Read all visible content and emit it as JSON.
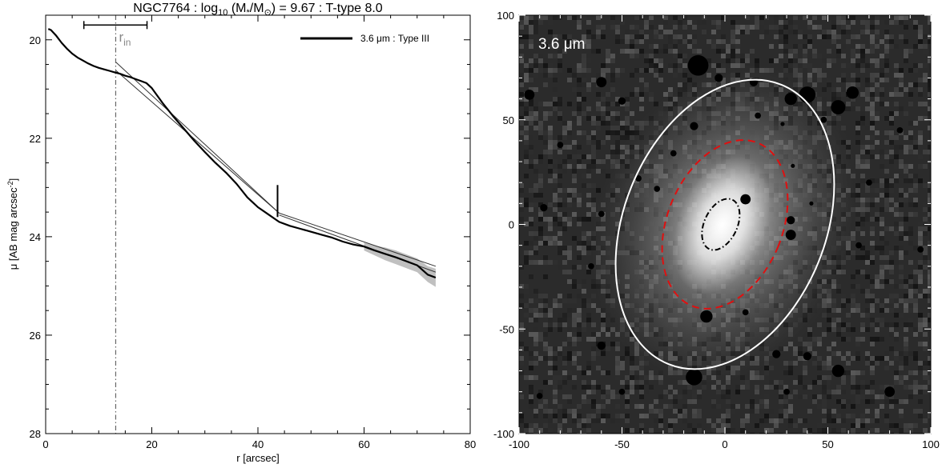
{
  "chart_data": [
    {
      "type": "line",
      "title_parts": {
        "prefix": "NGC7764 : log",
        "sub10": "10",
        "mid": " (M",
        "star": "*",
        "slash": "/M",
        "sun": "⊙",
        "suffix": ") = 9.67 : T-type 8.0"
      },
      "xlabel": "r [arcsec]",
      "ylabel_main": "μ [AB mag arcsec",
      "ylabel_sup": "-2",
      "ylabel_end": "]",
      "xlim": [
        0,
        80
      ],
      "ylim": [
        28,
        19.5
      ],
      "y_inverted": true,
      "xticks": [
        0,
        20,
        40,
        60,
        80
      ],
      "yticks": [
        20,
        22,
        24,
        26,
        28
      ],
      "grid": false,
      "legend": {
        "position": "top-right",
        "entries": [
          {
            "label": "3.6 μm : Type III",
            "style": "solid-thick"
          }
        ]
      },
      "series": [
        {
          "name": "3.6 μm : Type III",
          "x": [
            0.5,
            1,
            2,
            3,
            4,
            5,
            6,
            7,
            8,
            9,
            10,
            11,
            12,
            13,
            14,
            15,
            16,
            17,
            18,
            19,
            20,
            22,
            24,
            26,
            28,
            30,
            32,
            34,
            36,
            38,
            40,
            42,
            44,
            46,
            48,
            50,
            52,
            54,
            56,
            58,
            60,
            62,
            64,
            66,
            68,
            70,
            72,
            73.5
          ],
          "y": [
            19.78,
            19.8,
            19.92,
            20.06,
            20.18,
            20.28,
            20.36,
            20.42,
            20.48,
            20.53,
            20.57,
            20.6,
            20.63,
            20.66,
            20.69,
            20.73,
            20.76,
            20.8,
            20.84,
            20.88,
            20.98,
            21.28,
            21.55,
            21.8,
            22.05,
            22.28,
            22.5,
            22.7,
            22.93,
            23.2,
            23.4,
            23.55,
            23.7,
            23.78,
            23.84,
            23.9,
            23.96,
            24.02,
            24.1,
            24.16,
            24.2,
            24.28,
            24.35,
            24.42,
            24.5,
            24.58,
            24.77,
            24.83
          ]
        }
      ],
      "fits": [
        {
          "x": [
            13.2,
            44
          ],
          "y": [
            20.45,
            23.52
          ]
        },
        {
          "x": [
            13.2,
            44
          ],
          "y": [
            20.62,
            23.52
          ]
        },
        {
          "x": [
            44,
            73.5
          ],
          "y": [
            23.52,
            24.6
          ]
        },
        {
          "x": [
            44,
            73.5
          ],
          "y": [
            23.56,
            24.72
          ]
        }
      ],
      "uncertainty_band": {
        "x": [
          60,
          62,
          64,
          66,
          68,
          70,
          72,
          73.5
        ],
        "ylow": [
          24.12,
          24.18,
          24.22,
          24.28,
          24.36,
          24.44,
          24.6,
          24.65
        ],
        "yhigh": [
          24.28,
          24.38,
          24.48,
          24.56,
          24.64,
          24.72,
          24.92,
          25.02
        ]
      },
      "r_in": {
        "x": 13.2,
        "label_main": "r",
        "label_sub": "in",
        "error_bar": {
          "x_low": 7.2,
          "x_high": 19.1,
          "y": 19.7
        }
      },
      "break_marker": {
        "x": 43.7,
        "y_low": 22.95,
        "y_high": 23.6
      },
      "colors": {
        "profile": "#000000",
        "fit": "#333333",
        "band": "#c0c0c0",
        "rin": "#666666"
      }
    },
    {
      "type": "image",
      "band_label": "3.6 μm",
      "xlim": [
        -100,
        100
      ],
      "ylim": [
        -100,
        100
      ],
      "xticks": [
        -100,
        -50,
        0,
        50,
        100
      ],
      "yticks": [
        -100,
        -50,
        0,
        50,
        100
      ],
      "ellipses": [
        {
          "name": "outer-white",
          "cx": 0,
          "cy": 0,
          "a": 72,
          "b": 49,
          "pa_deg": -22,
          "style": "solid",
          "color": "#ffffff"
        },
        {
          "name": "break-red",
          "cx": 0,
          "cy": 0,
          "a": 42,
          "b": 28,
          "pa_deg": -22,
          "style": "dashed",
          "color": "#e01010"
        },
        {
          "name": "inner-black",
          "cx": -2,
          "cy": 0,
          "a": 13,
          "b": 8,
          "pa_deg": -25,
          "style": "dash-dot",
          "color": "#000000"
        }
      ],
      "masks": [
        [
          -13,
          76,
          5
        ],
        [
          -60,
          68,
          2.5
        ],
        [
          -95,
          62,
          2.5
        ],
        [
          -3,
          70,
          2
        ],
        [
          14,
          68,
          2
        ],
        [
          32,
          60,
          3
        ],
        [
          40,
          62,
          4
        ],
        [
          55,
          56,
          3.5
        ],
        [
          62,
          63,
          3
        ],
        [
          -50,
          59,
          1.8
        ],
        [
          -15,
          47,
          2
        ],
        [
          16,
          52,
          1.5
        ],
        [
          48,
          50,
          1.5
        ],
        [
          -42,
          22,
          1.5
        ],
        [
          -60,
          5,
          1.5
        ],
        [
          -88,
          8,
          1.8
        ],
        [
          10,
          12,
          2.5
        ],
        [
          32,
          2,
          2
        ],
        [
          -33,
          17,
          1.5
        ],
        [
          33,
          28,
          1
        ],
        [
          42,
          10,
          1
        ],
        [
          28,
          48,
          1
        ],
        [
          -9,
          -44,
          3
        ],
        [
          32,
          -5,
          2.5
        ],
        [
          65,
          -10,
          1.5
        ],
        [
          -60,
          -58,
          2
        ],
        [
          25,
          -62,
          2
        ],
        [
          40,
          -63,
          2
        ],
        [
          55,
          -70,
          3
        ],
        [
          30,
          -80,
          1.5
        ],
        [
          80,
          -80,
          2.5
        ],
        [
          95,
          -12,
          1.5
        ],
        [
          -50,
          -80,
          1.5
        ],
        [
          -65,
          -20,
          1.5
        ],
        [
          -15,
          -73,
          4
        ],
        [
          -90,
          -82,
          1.5
        ],
        [
          -80,
          38,
          1.5
        ],
        [
          -25,
          34,
          1.5
        ],
        [
          10,
          -42,
          1.5
        ],
        [
          70,
          20,
          1.5
        ],
        [
          85,
          45,
          1.5
        ]
      ],
      "colors": {
        "background": "#2b2b2b",
        "galaxy": "#ffffff"
      }
    }
  ]
}
